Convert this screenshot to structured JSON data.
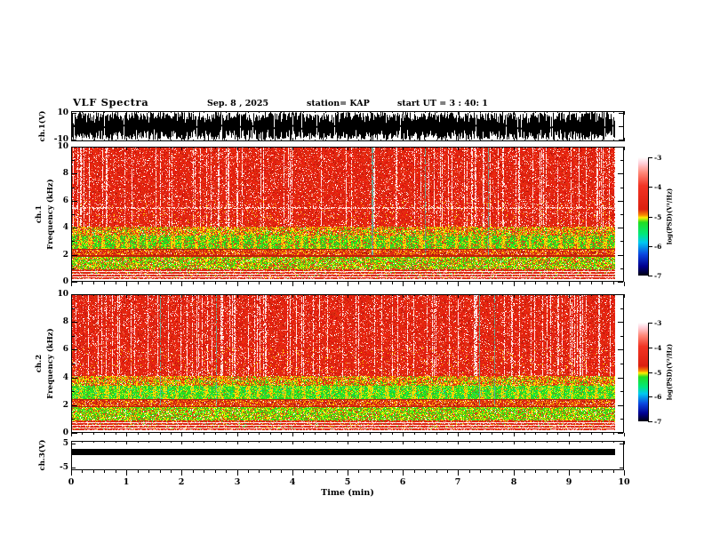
{
  "header": {
    "title": "VLF Spectra",
    "date": "Sep. 8 , 2025",
    "station": "station= KAP",
    "start_ut": "start UT =  3 : 40: 1"
  },
  "x_axis": {
    "label": "Time (min)",
    "ticks": [
      "0",
      "1",
      "2",
      "3",
      "4",
      "5",
      "6",
      "7",
      "8",
      "9",
      "10"
    ],
    "minor_step_min": 0.2,
    "range_min": [
      0,
      10
    ],
    "data_extent_min": [
      0,
      9.84
    ]
  },
  "colorbar": {
    "label": "log(PSD)(V²/Hz)",
    "ticks": [
      "-3",
      "-4",
      "-5",
      "-6",
      "-7"
    ],
    "value_range": [
      -7,
      -3
    ],
    "gradient_top_to_bottom": [
      "#ffffff 0%",
      "#ffd0da 5%",
      "#ff8878 13%",
      "#f23424 24%",
      "#dc2010 44%",
      "#f98c00 49%",
      "#ffee00 51%",
      "#22dd22 55%",
      "#00e87c 65%",
      "#00c8f0 72%",
      "#0a46e0 82%",
      "#000090 92%",
      "#000010 100%"
    ]
  },
  "chart_data": [
    {
      "id": "ch1_waveform",
      "type": "line",
      "ylabel": "ch.1(V)",
      "ylim": [
        -10,
        10
      ],
      "ytick_labels": [
        "10",
        "-10"
      ],
      "description": "dense clipped broadband noise filling approximately ±10 V across the full 0–9.84 min record"
    },
    {
      "id": "ch1_spectrogram",
      "type": "heatmap",
      "ylabel_channel": "ch.1",
      "ylabel_axis": "Frequency (kHz)",
      "ylim_khz": [
        0,
        10
      ],
      "ytick_labels": [
        "10",
        "8",
        "6",
        "4",
        "2",
        "0"
      ],
      "colorscale_range_log_psd": [
        -7,
        -3
      ],
      "x_extent_min": [
        0,
        9.84
      ],
      "bands": [
        {
          "f_khz": [
            4.1,
            10
          ],
          "log_psd": -4.0,
          "description": "solid red with vertical white/pink streaks"
        },
        {
          "f_khz": [
            3.4,
            4.1
          ],
          "log_psd": -4.4,
          "description": "yellow/orange transition with green spikes"
        },
        {
          "f_khz": [
            2.4,
            3.4
          ],
          "log_psd": -5.0,
          "description": "bright green band, vertically segmented with yellow dividers"
        },
        {
          "f_khz": [
            1.9,
            2.4
          ],
          "log_psd": -4.2,
          "description": "red/orange band bounded by dark red lines"
        },
        {
          "f_khz": [
            0.9,
            1.9
          ],
          "log_psd": -5.0,
          "description": "green/yellow speckled band"
        },
        {
          "f_khz": [
            0.25,
            0.9
          ],
          "log_psd": -3.8,
          "description": "red with bright white/pink horizontal stripes"
        },
        {
          "f_khz": [
            0,
            0.25
          ],
          "log_psd": -3.2,
          "description": "near-saturated white/pink edge rows"
        }
      ]
    },
    {
      "id": "ch2_spectrogram",
      "type": "heatmap",
      "ylabel_channel": "ch.2",
      "ylabel_axis": "Frequency (kHz)",
      "ylim_khz": [
        0,
        10
      ],
      "ytick_labels": [
        "10",
        "8",
        "6",
        "4",
        "2",
        "0"
      ],
      "colorscale_range_log_psd": [
        -7,
        -3
      ],
      "x_extent_min": [
        0,
        9.84
      ],
      "bands": [
        {
          "f_khz": [
            4.1,
            10
          ],
          "log_psd": -4.0,
          "description": "solid red with vertical white/pink streaks"
        },
        {
          "f_khz": [
            3.4,
            4.1
          ],
          "log_psd": -4.4,
          "description": "yellow/orange transition with tall green spikes"
        },
        {
          "f_khz": [
            2.4,
            3.4
          ],
          "log_psd": -5.2,
          "description": "bright continuous green band with cyan flecks"
        },
        {
          "f_khz": [
            1.9,
            2.4
          ],
          "log_psd": -4.2,
          "description": "red/orange band bounded by dark red lines"
        },
        {
          "f_khz": [
            0.9,
            1.9
          ],
          "log_psd": -5.2,
          "description": "dense green/yellow speckled band"
        },
        {
          "f_khz": [
            0.25,
            0.9
          ],
          "log_psd": -3.8,
          "description": "red with bright white/pink horizontal stripes"
        },
        {
          "f_khz": [
            0,
            0.25
          ],
          "log_psd": -3.2,
          "description": "near-saturated white/pink edge rows"
        }
      ]
    },
    {
      "id": "ch3_waveform",
      "type": "line",
      "ylabel": "ch.3(V)",
      "ylim": [
        -6,
        6
      ],
      "ytick_labels": [
        "5",
        "-5"
      ],
      "description": "constant saturated level drawn as a solid black bar from about +0.2 V to +2.8 V across the full record"
    }
  ]
}
